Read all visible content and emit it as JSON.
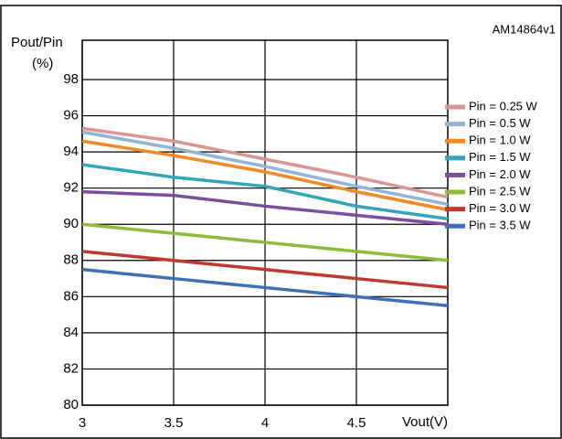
{
  "chart_data": {
    "type": "line",
    "watermark": "AM14864v1",
    "ylabel": "Pout/Pin",
    "ylabel_unit": "(%)",
    "xlabel": "Vout(V)",
    "x": [
      3,
      3.5,
      4,
      4.5,
      5
    ],
    "xlim": [
      3,
      5
    ],
    "xticks": [
      3,
      3.5,
      4,
      4.5
    ],
    "ylim": [
      80,
      98
    ],
    "yticks": [
      80,
      82,
      84,
      86,
      88,
      90,
      92,
      94,
      96,
      98
    ],
    "grid": true,
    "legend": "right",
    "series": [
      {
        "name": "Pin = 0.25 W",
        "color": "#d99694",
        "values": [
          95.3,
          94.6,
          93.6,
          92.6,
          91.5
        ]
      },
      {
        "name": "Pin = 0.5 W",
        "color": "#95b3d7",
        "values": [
          95.1,
          94.2,
          93.2,
          92.1,
          91.1
        ]
      },
      {
        "name": "Pin = 1.0 W",
        "color": "#f08a24",
        "values": [
          94.6,
          93.8,
          92.9,
          91.8,
          90.8
        ]
      },
      {
        "name": "Pin = 1.5 W",
        "color": "#31a6b8",
        "values": [
          93.3,
          92.6,
          92.1,
          91.0,
          90.3
        ]
      },
      {
        "name": "Pin = 2.0 W",
        "color": "#7a4f9e",
        "values": [
          91.8,
          91.6,
          91.0,
          90.5,
          90.0
        ]
      },
      {
        "name": "Pin = 2.5 W",
        "color": "#8fba3a",
        "values": [
          90.0,
          89.5,
          89.0,
          88.5,
          88.0
        ]
      },
      {
        "name": "Pin = 3.0 W",
        "color": "#c0392f",
        "values": [
          88.5,
          88.0,
          87.5,
          87.0,
          86.5
        ]
      },
      {
        "name": "Pin = 3.5 W",
        "color": "#3f6fb5",
        "values": [
          87.5,
          87.0,
          86.5,
          86.0,
          85.5
        ]
      }
    ]
  }
}
